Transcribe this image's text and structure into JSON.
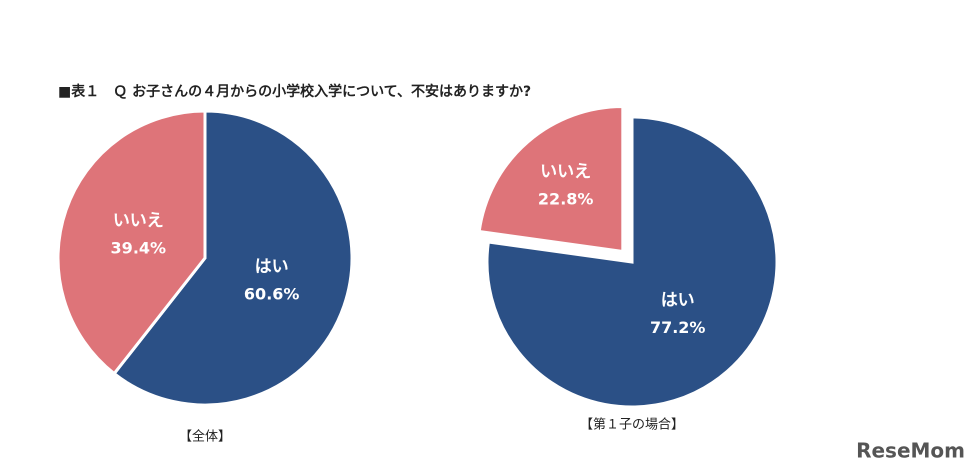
{
  "title": "■表１　Ｑ お子さんの４月からの小学校入学について、不安はありますか?",
  "watermark": "ReseMom",
  "chart_data": [
    {
      "type": "pie",
      "title": "【全体】",
      "categories": [
        "はい",
        "いいえ"
      ],
      "values": [
        60.6,
        39.4
      ],
      "value_labels": [
        "60.6%",
        "39.4%"
      ],
      "colors": [
        "#2b5086",
        "#de7479"
      ],
      "explode": [
        0,
        0
      ]
    },
    {
      "type": "pie",
      "title": "【第１子の場合】",
      "categories": [
        "はい",
        "いいえ"
      ],
      "values": [
        77.2,
        22.8
      ],
      "value_labels": [
        "77.2%",
        "22.8%"
      ],
      "colors": [
        "#2b5086",
        "#de7479"
      ],
      "explode": [
        0,
        1
      ]
    }
  ]
}
